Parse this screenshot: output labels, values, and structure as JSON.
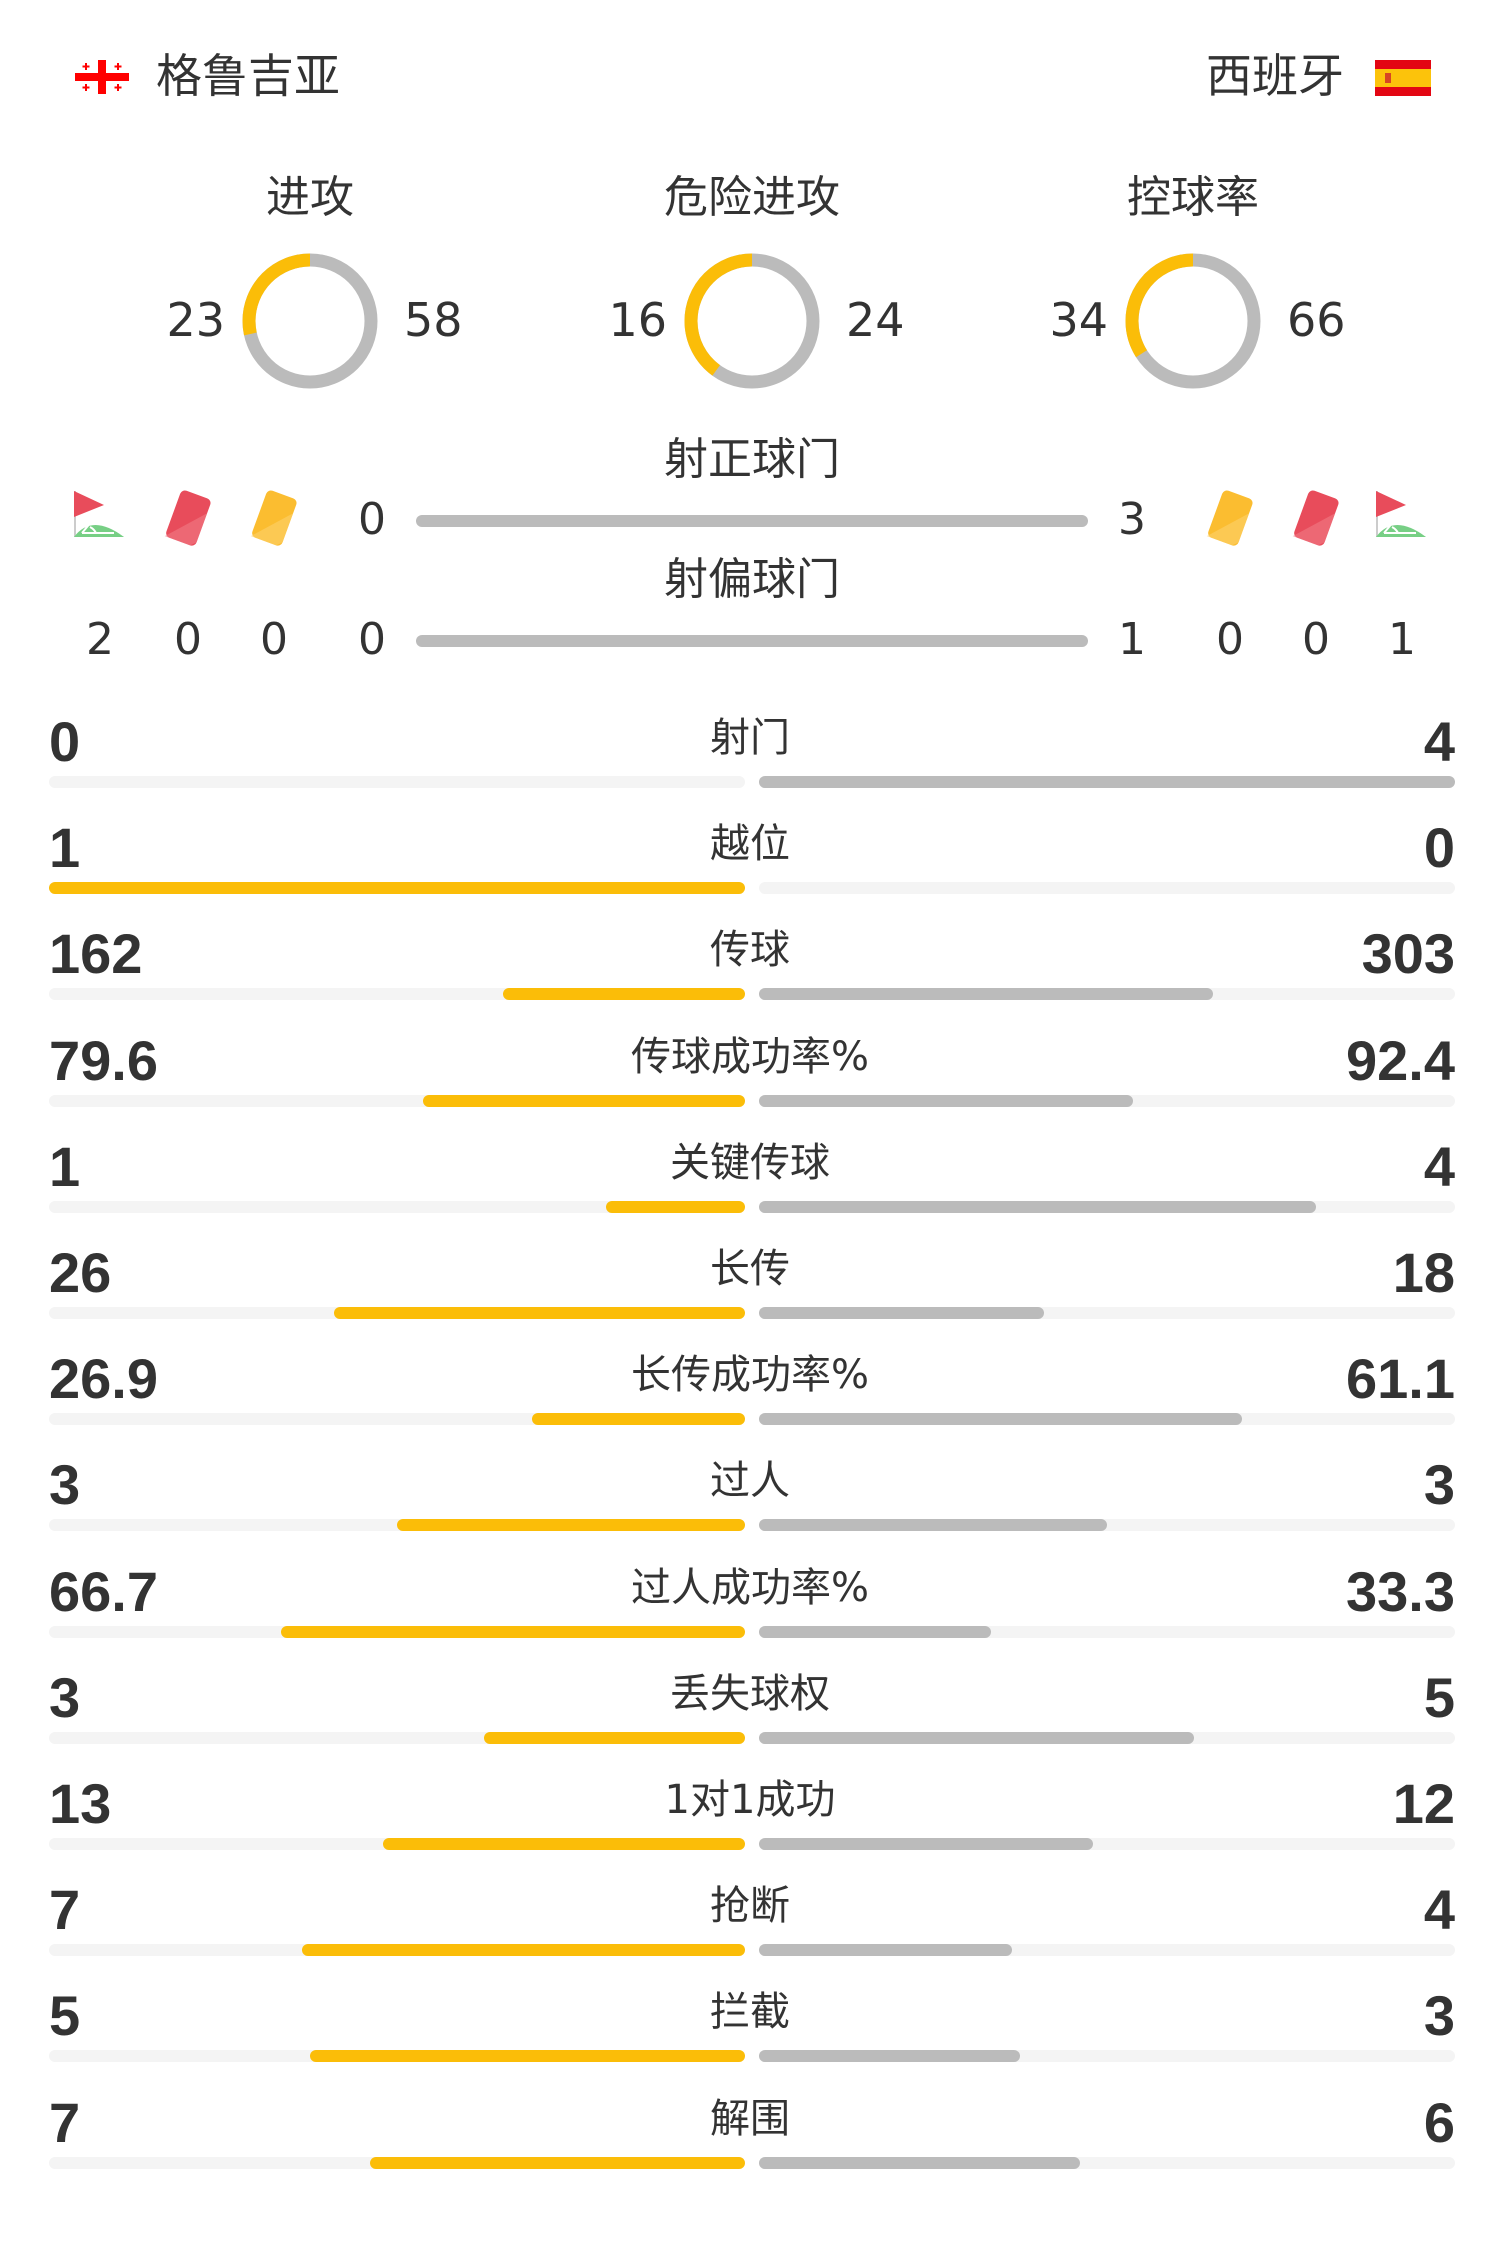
{
  "header": {
    "home_team": "格鲁吉亚",
    "away_team": "西班牙",
    "home_flag_icon": "georgia-flag-icon",
    "away_flag_icon": "spain-flag-icon"
  },
  "colors": {
    "home": "#fbbd08",
    "away": "#bbbbbb",
    "track": "#f4f4f4",
    "text": "#333333"
  },
  "donuts": [
    {
      "label": "进攻",
      "home": "23",
      "away": "58"
    },
    {
      "label": "危险进攻",
      "home": "16",
      "away": "24"
    },
    {
      "label": "控球率",
      "home": "34",
      "away": "66"
    }
  ],
  "shots": {
    "on_target": {
      "label": "射正球门",
      "home": "0",
      "away": "3"
    },
    "off_target": {
      "label": "射偏球门",
      "home": "0",
      "away": "1"
    }
  },
  "events": {
    "icons": [
      "corner-flag-icon",
      "red-card-icon",
      "yellow-card-icon"
    ],
    "home": {
      "corners": "2",
      "red_cards": "0",
      "yellow_cards": "0"
    },
    "away": {
      "corners": "1",
      "red_cards": "0",
      "yellow_cards": "0"
    }
  },
  "stats": [
    {
      "label": "射门",
      "home": "0",
      "away": "4"
    },
    {
      "label": "越位",
      "home": "1",
      "away": "0"
    },
    {
      "label": "传球",
      "home": "162",
      "away": "303"
    },
    {
      "label": "传球成功率%",
      "home": "79.6",
      "away": "92.4"
    },
    {
      "label": "关键传球",
      "home": "1",
      "away": "4"
    },
    {
      "label": "长传",
      "home": "26",
      "away": "18"
    },
    {
      "label": "长传成功率%",
      "home": "26.9",
      "away": "61.1"
    },
    {
      "label": "过人",
      "home": "3",
      "away": "3"
    },
    {
      "label": "过人成功率%",
      "home": "66.7",
      "away": "33.3"
    },
    {
      "label": "丢失球权",
      "home": "3",
      "away": "5"
    },
    {
      "label": "1对1成功",
      "home": "13",
      "away": "12"
    },
    {
      "label": "抢断",
      "home": "7",
      "away": "4"
    },
    {
      "label": "拦截",
      "home": "5",
      "away": "3"
    },
    {
      "label": "解围",
      "home": "7",
      "away": "6"
    }
  ]
}
